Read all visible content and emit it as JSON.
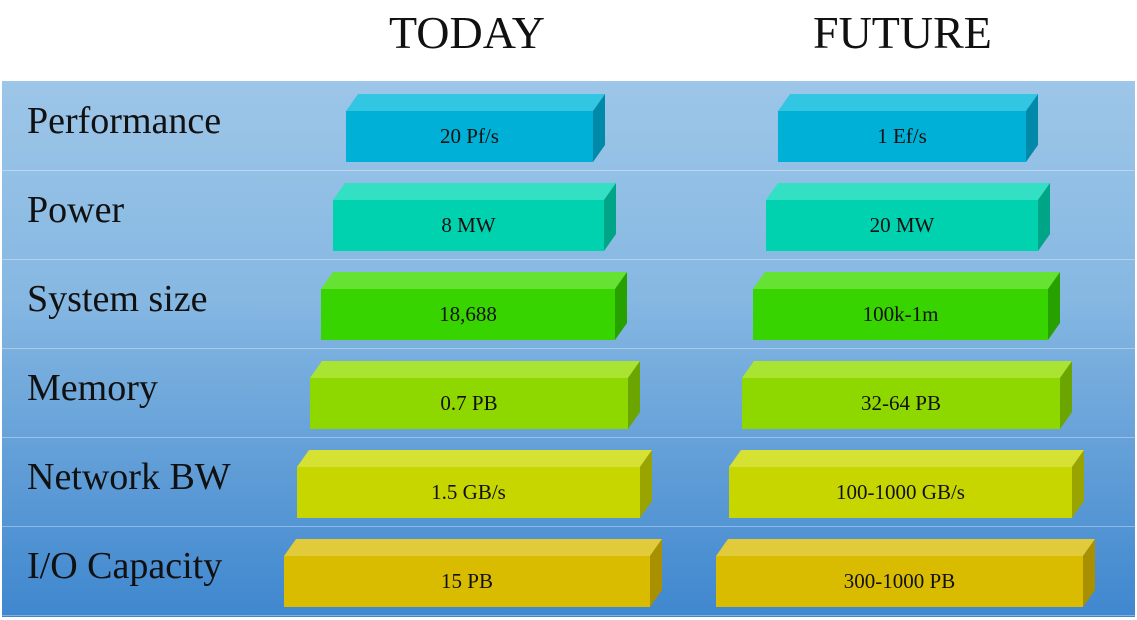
{
  "columns": {
    "today": "TODAY",
    "future": "FUTURE"
  },
  "rows": [
    {
      "label": "Performance",
      "today": "20 Pf/s",
      "future": "1 Ef/s",
      "front": "#00b0d6",
      "top": "#33c6e3",
      "side": "#0089a8"
    },
    {
      "label": "Power",
      "today": "8 MW",
      "future": "20 MW",
      "front": "#00d2b0",
      "top": "#33e0c4",
      "side": "#00a487"
    },
    {
      "label": "System size",
      "today": "18,688",
      "future": "100k-1m",
      "front": "#38d400",
      "top": "#66e233",
      "side": "#27a100"
    },
    {
      "label": "Memory",
      "today": "0.7 PB",
      "future": "32-64 PB",
      "front": "#8ed800",
      "top": "#a9e433",
      "side": "#6aa500"
    },
    {
      "label": "Network BW",
      "today": "1.5 GB/s",
      "future": "100-1000 GB/s",
      "front": "#c8d600",
      "top": "#d6e233",
      "side": "#9aa400"
    },
    {
      "label": "I/O Capacity",
      "today": "15 PB",
      "future": "300-1000 PB",
      "front": "#d9bc00",
      "top": "#e2cb3a",
      "side": "#a89000"
    }
  ]
}
